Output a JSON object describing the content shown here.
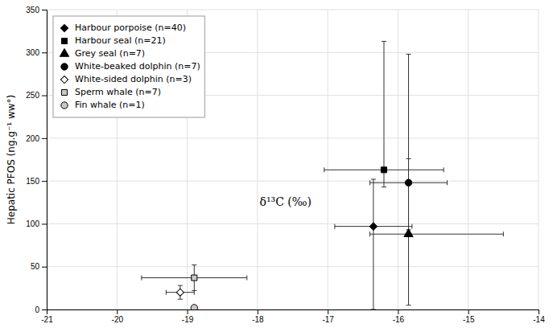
{
  "chart_data": {
    "type": "scatter",
    "y_label": "Hepatic PFOS (ng.g⁻¹ ww°)",
    "xlim": [
      -21,
      -14
    ],
    "ylim": [
      0,
      350
    ],
    "xticks": [
      -21,
      -20,
      -19,
      -18,
      -17,
      -16,
      -15,
      -14
    ],
    "yticks": [
      0,
      50,
      100,
      150,
      200,
      250,
      300,
      350
    ],
    "grid": true,
    "legend": "upper left",
    "annotations": [
      {
        "text": "δ¹³C (‰)",
        "x": -17.6,
        "y": 125
      }
    ],
    "series": [
      {
        "name": "Harbour porpoise (n=40)",
        "marker": "diamond",
        "color": "black",
        "x": [
          -16.35
        ],
        "values": [
          97
        ],
        "xerr_low": [
          0.55
        ],
        "xerr_high": [
          0.55
        ],
        "yerr_low": [
          97
        ],
        "yerr_high": [
          55
        ]
      },
      {
        "name": "Harbour seal (n=21)",
        "marker": "square",
        "color": "black",
        "x": [
          -16.2
        ],
        "values": [
          163
        ],
        "xerr_low": [
          0.85
        ],
        "xerr_high": [
          0.85
        ],
        "yerr_low": [
          20
        ],
        "yerr_high": [
          150
        ]
      },
      {
        "name": "Grey seal (n=7)",
        "marker": "triangle",
        "color": "black",
        "x": [
          -15.85
        ],
        "values": [
          88
        ],
        "xerr_low": [
          0.55
        ],
        "xerr_high": [
          1.35
        ],
        "yerr_low": [
          83
        ],
        "yerr_high": [
          88
        ]
      },
      {
        "name": "White-beaked dolphin (n=7)",
        "marker": "circle",
        "color": "black",
        "x": [
          -15.85
        ],
        "values": [
          148
        ],
        "xerr_low": [
          0.55
        ],
        "xerr_high": [
          0.55
        ],
        "yerr_low": [
          55
        ],
        "yerr_high": [
          150
        ]
      },
      {
        "name": "White-sided dolphin (n=3)",
        "marker": "diamond",
        "color": "white",
        "x": [
          -19.1
        ],
        "values": [
          20
        ],
        "xerr_low": [
          0.2
        ],
        "xerr_high": [
          0.2
        ],
        "yerr_low": [
          8
        ],
        "yerr_high": [
          8
        ]
      },
      {
        "name": "Sperm whale (n=7)",
        "marker": "square",
        "color": "#c8c8c8",
        "x": [
          -18.9
        ],
        "values": [
          37
        ],
        "xerr_low": [
          0.75
        ],
        "xerr_high": [
          0.75
        ],
        "yerr_low": [
          15
        ],
        "yerr_high": [
          15
        ]
      },
      {
        "name": "Fin whale (n=1)",
        "marker": "circle",
        "color": "#c8c8c8",
        "x": [
          -18.9
        ],
        "values": [
          2
        ]
      }
    ]
  }
}
